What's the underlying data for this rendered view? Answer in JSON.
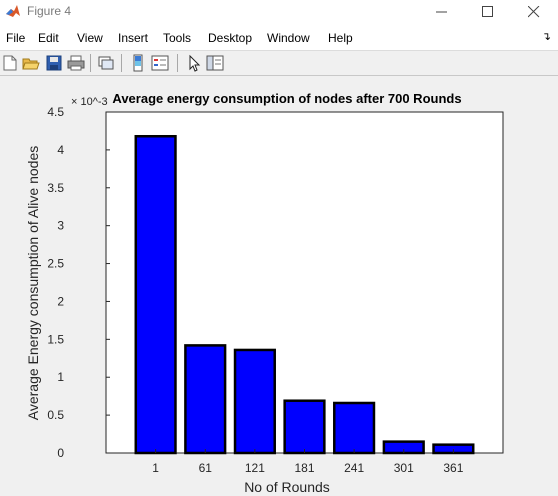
{
  "window": {
    "title": "Figure 4"
  },
  "menu": {
    "items": [
      "File",
      "Edit",
      "View",
      "Insert",
      "Tools",
      "Desktop",
      "Window",
      "Help"
    ],
    "overflow_icon": "dock-arrow-icon"
  },
  "toolbar": {
    "icons": [
      "new-figure-icon",
      "open-file-icon",
      "save-icon",
      "print-icon",
      "link-plot-icon",
      "insert-colorbar-icon",
      "insert-legend-icon",
      "edit-plot-icon",
      "open-property-inspector-icon"
    ]
  },
  "colors": {
    "bar_fill": "#0000ff",
    "bar_edge": "#000000",
    "axes_bg": "#ffffff",
    "figure_bg": "#f0f0f0"
  },
  "chart_data": {
    "type": "bar",
    "title": "Average energy consumption of nodes after 700 Rounds",
    "xlabel": "No of Rounds",
    "ylabel": "Average Energy consumption of Alive nodes",
    "y_exponent": "× 10^-3",
    "categories": [
      "1",
      "61",
      "121",
      "181",
      "241",
      "301",
      "361"
    ],
    "values": [
      4.18,
      1.42,
      1.36,
      0.69,
      0.66,
      0.15,
      0.11
    ],
    "yticks": [
      "0",
      "0.5",
      "1",
      "1.5",
      "2",
      "2.5",
      "3",
      "3.5",
      "4",
      "4.5"
    ],
    "ylim": [
      0,
      4.5
    ],
    "grid": false,
    "legend": "none"
  }
}
